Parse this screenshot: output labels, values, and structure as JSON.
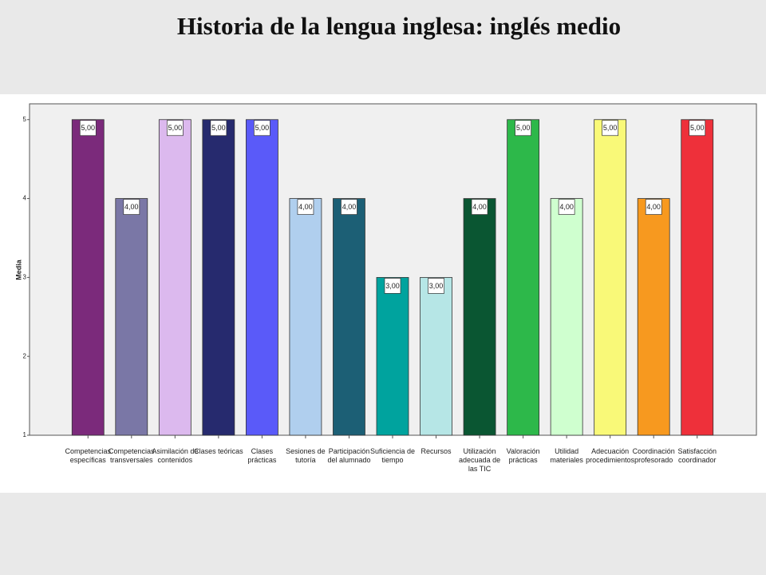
{
  "chart_data": {
    "type": "bar",
    "title": "Historia de la lengua inglesa: inglés medio",
    "y_label": "Media",
    "categories": [
      "Competencias\nespecíficas",
      "Competencias\ntransversales",
      "Asimilación de\ncontenidos",
      "Clases teóricas",
      "Clases\nprácticas",
      "Sesiones de\ntutoría",
      "Participación\ndel alumnado",
      "Suficiencia de\ntiempo",
      "Recursos",
      "Utilización\nadecuada de\nlas TIC",
      "Valoración\nprácticas",
      "Utilidad\nmateriales",
      "Adecuación\nprocedimientos",
      "Coordinación\nprofesorado",
      "Satisfacción\ncoordinador"
    ],
    "values": [
      5,
      4,
      5,
      5,
      5,
      4,
      4,
      3,
      3,
      4,
      5,
      4,
      5,
      4,
      5
    ],
    "value_labels": [
      "5,00",
      "4,00",
      "5,00",
      "5,00",
      "5,00",
      "4,00",
      "4,00",
      "3,00",
      "3,00",
      "4,00",
      "5,00",
      "4,00",
      "5,00",
      "4,00",
      "5,00"
    ],
    "colors": [
      "#7b2a7b",
      "#7a77a6",
      "#dcb9ee",
      "#262a6e",
      "#5a5af9",
      "#b0cfee",
      "#1c5f75",
      "#00a39e",
      "#b6e6e6",
      "#0a5632",
      "#2db84a",
      "#cfffcf",
      "#f9f978",
      "#f7991f",
      "#ee303a"
    ],
    "ylim": [
      1,
      5.2
    ],
    "yticks": [
      1,
      2,
      3,
      4,
      5
    ]
  }
}
